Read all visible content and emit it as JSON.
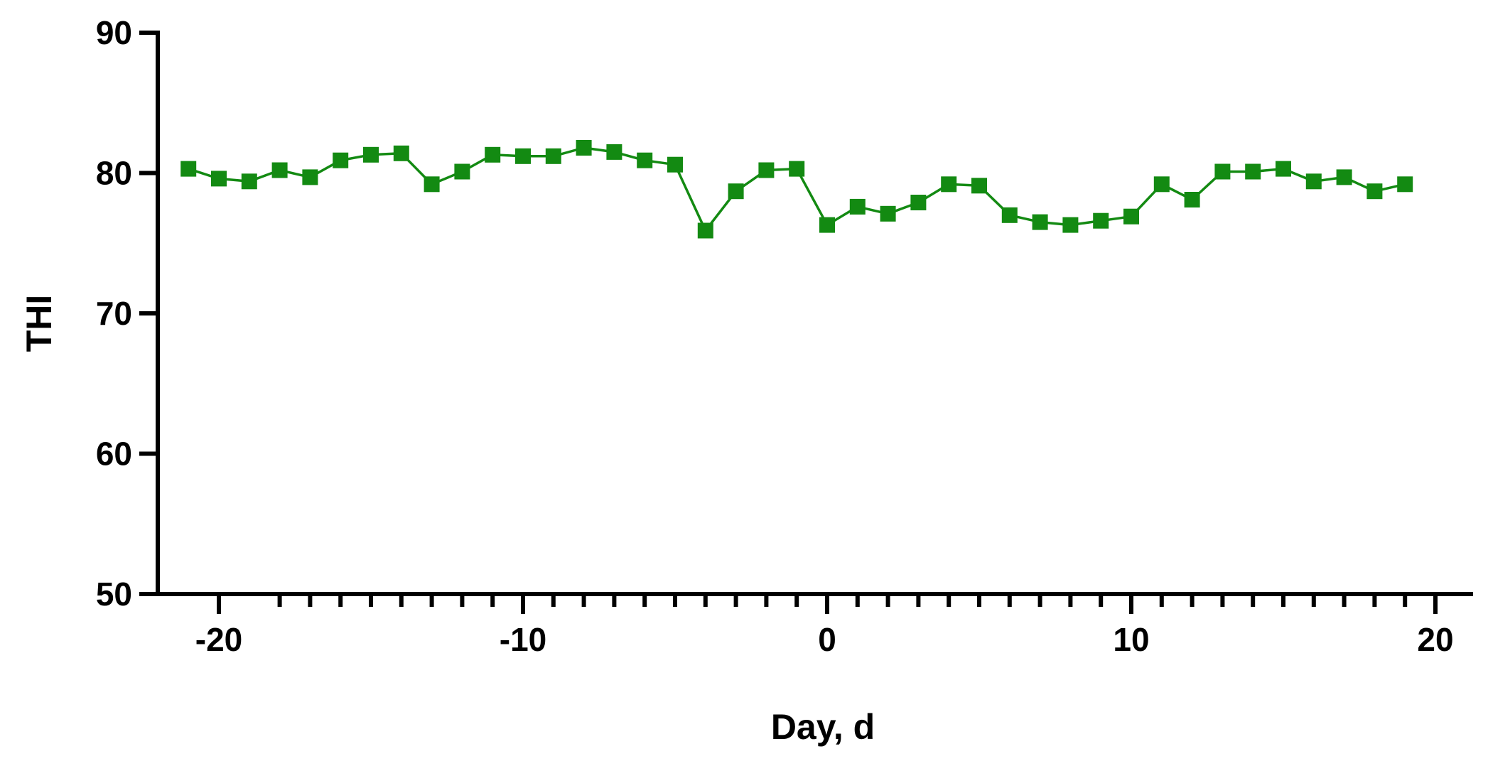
{
  "chart_data": {
    "type": "line",
    "title": "",
    "xlabel": "Day,  d",
    "ylabel": "THI",
    "xlim": [
      -22,
      21
    ],
    "ylim": [
      50,
      90
    ],
    "x_ticks_major": [
      -20,
      -10,
      0,
      10,
      20
    ],
    "x_ticks_minor": [
      -18,
      -17,
      -16,
      -15,
      -14,
      -13,
      -12,
      -11,
      -9,
      -8,
      -7,
      -6,
      -5,
      -4,
      -3,
      -2,
      -1,
      1,
      2,
      3,
      4,
      5,
      6,
      7,
      8,
      9,
      11,
      12,
      13,
      14,
      15,
      16,
      17,
      18,
      19
    ],
    "y_ticks": [
      50,
      60,
      70,
      80,
      90
    ],
    "grid": false,
    "legend": "none",
    "series": [
      {
        "color": "#138a12",
        "marker": "square",
        "x": [
          -21,
          -20,
          -19,
          -18,
          -17,
          -16,
          -15,
          -14,
          -13,
          -12,
          -11,
          -10,
          -9,
          -8,
          -7,
          -6,
          -5,
          -4,
          -3,
          -2,
          -1,
          0,
          1,
          2,
          3,
          4,
          5,
          6,
          7,
          8,
          9,
          10,
          11,
          12,
          13,
          14,
          15,
          16,
          17,
          18,
          19
        ],
        "values": [
          80.3,
          79.6,
          79.4,
          80.2,
          79.7,
          80.9,
          81.3,
          81.4,
          79.2,
          80.1,
          81.3,
          81.2,
          81.2,
          81.8,
          81.5,
          80.9,
          80.6,
          75.9,
          78.7,
          80.2,
          80.3,
          76.3,
          77.6,
          77.1,
          77.9,
          79.2,
          79.1,
          77.0,
          76.5,
          76.3,
          76.6,
          76.9,
          79.2,
          78.1,
          80.1,
          80.1,
          80.3,
          79.4,
          79.7,
          78.7,
          79.2
        ]
      }
    ]
  }
}
